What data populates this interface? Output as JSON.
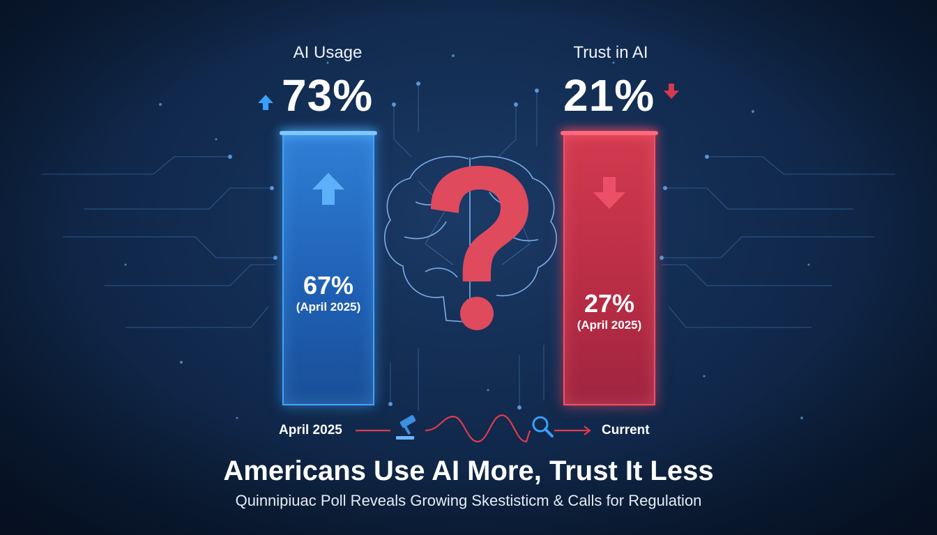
{
  "chart_data": {
    "type": "bar",
    "categories": [
      "AI Usage",
      "Trust in AI"
    ],
    "series": [
      {
        "name": "Current",
        "values": [
          73,
          21
        ]
      },
      {
        "name": "April 2025",
        "values": [
          67,
          27
        ]
      }
    ],
    "current_value_labels": [
      "73%",
      "21%"
    ],
    "previous_value_labels": [
      "67%",
      "27%"
    ],
    "previous_date_labels": [
      "(April 2025)",
      "(April 2025)"
    ],
    "trend": [
      "up",
      "down"
    ],
    "colors": [
      "#2f7fd6",
      "#d23a4f"
    ],
    "ylim": [
      0,
      100
    ],
    "legend": "none",
    "grid": false
  },
  "timeline": {
    "start_label": "April 2025",
    "end_label": "Current",
    "icons": [
      "gavel-icon",
      "magnifier-icon"
    ]
  },
  "headline": "Americans Use AI More, Trust It Less",
  "subheadline": "Quinnipiuac Poll Reveals Growing Skestisticm & Calls for Regulation",
  "center_graphic": {
    "icons": [
      "brain-icon",
      "question-mark-icon"
    ]
  },
  "accent_colors": {
    "blue": "#3fa3ff",
    "red": "#ff4d63",
    "background": "#112a4e"
  }
}
